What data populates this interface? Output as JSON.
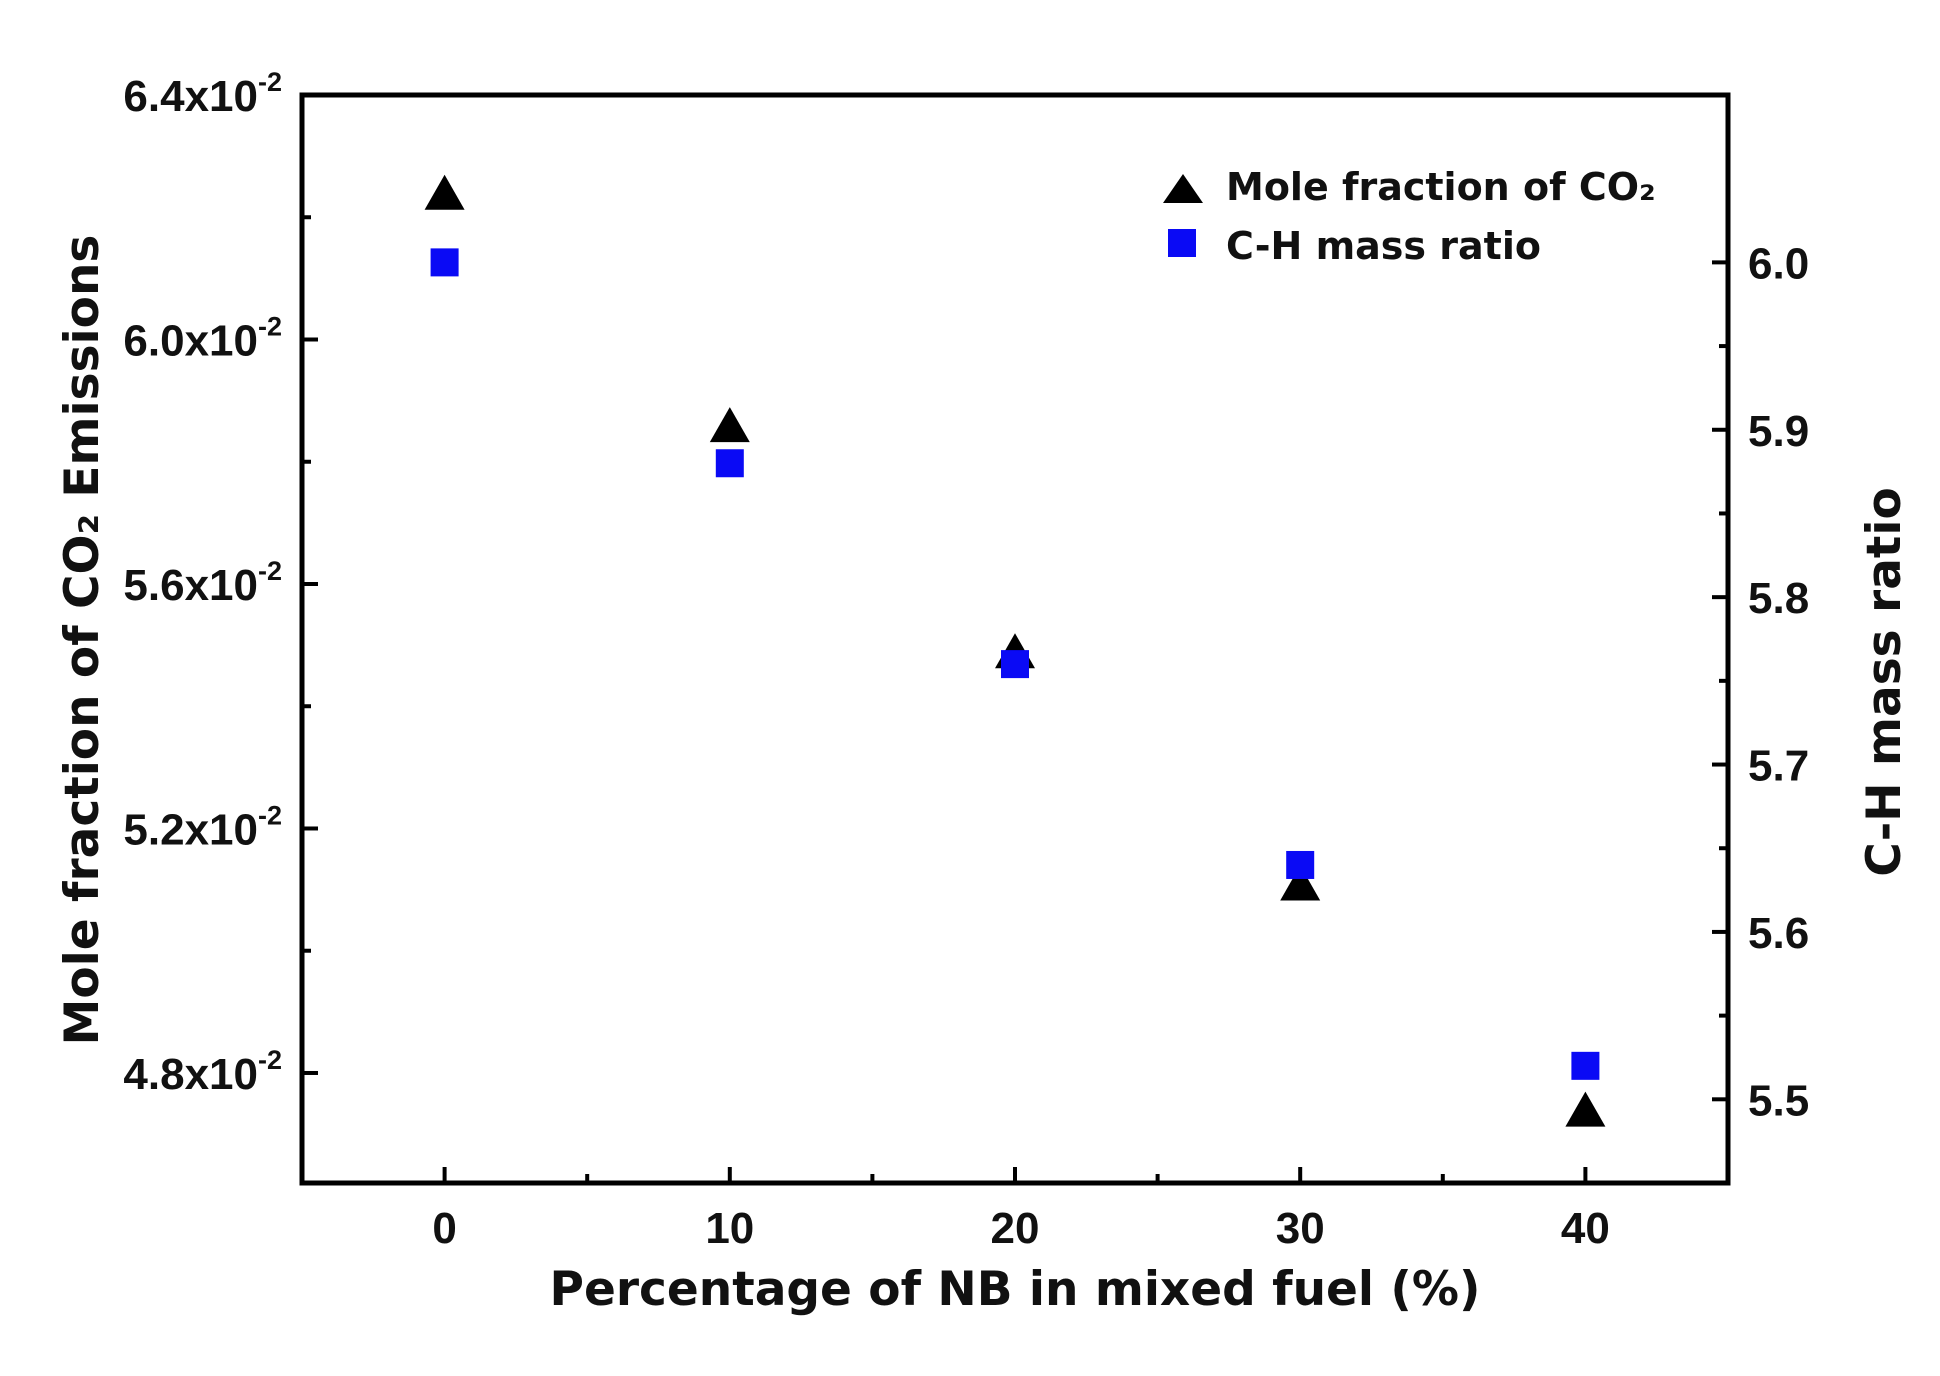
{
  "chart_data": {
    "type": "scatter",
    "x": [
      0,
      10,
      20,
      30,
      40
    ],
    "xlabel": "Percentage of NB in mixed fuel (%)",
    "xlim": [
      -5,
      45
    ],
    "xticks": [
      0,
      10,
      20,
      30,
      40
    ],
    "xtick_labels": [
      "0",
      "10",
      "20",
      "30",
      "40"
    ],
    "ylabel_left": "Mole fraction of CO₂ Emissions",
    "ylim_left": [
      0.0462,
      0.064
    ],
    "yticks_left": [
      0.048,
      0.052,
      0.056,
      0.06,
      0.064
    ],
    "ytick_labels_left": [
      {
        "mantissa": "4.8x10",
        "exp": "-2"
      },
      {
        "mantissa": "5.2x10",
        "exp": "-2"
      },
      {
        "mantissa": "5.6x10",
        "exp": "-2"
      },
      {
        "mantissa": "6.0x10",
        "exp": "-2"
      },
      {
        "mantissa": "6.4x10",
        "exp": "-2"
      }
    ],
    "ylabel_right": "C-H mass ratio",
    "ylim_right": [
      5.45,
      6.1
    ],
    "yticks_right": [
      5.5,
      5.6,
      5.7,
      5.8,
      5.9,
      6.0
    ],
    "ytick_labels_right": [
      "5.5",
      "5.6",
      "5.7",
      "5.8",
      "5.9",
      "6.0"
    ],
    "series": [
      {
        "name": "Mole fraction of CO₂",
        "axis": "left",
        "marker": "triangle",
        "color": "#000000",
        "values": [
          0.0624,
          0.0586,
          0.0549,
          0.0511,
          0.0474
        ]
      },
      {
        "name": "C-H mass ratio",
        "axis": "right",
        "marker": "square",
        "color": "#0a0af5",
        "values": [
          6.0,
          5.88,
          5.76,
          5.64,
          5.52
        ]
      }
    ],
    "legend": {
      "position": "top-right",
      "entries": [
        "Mole fraction of CO₂",
        "C-H mass ratio"
      ]
    }
  }
}
